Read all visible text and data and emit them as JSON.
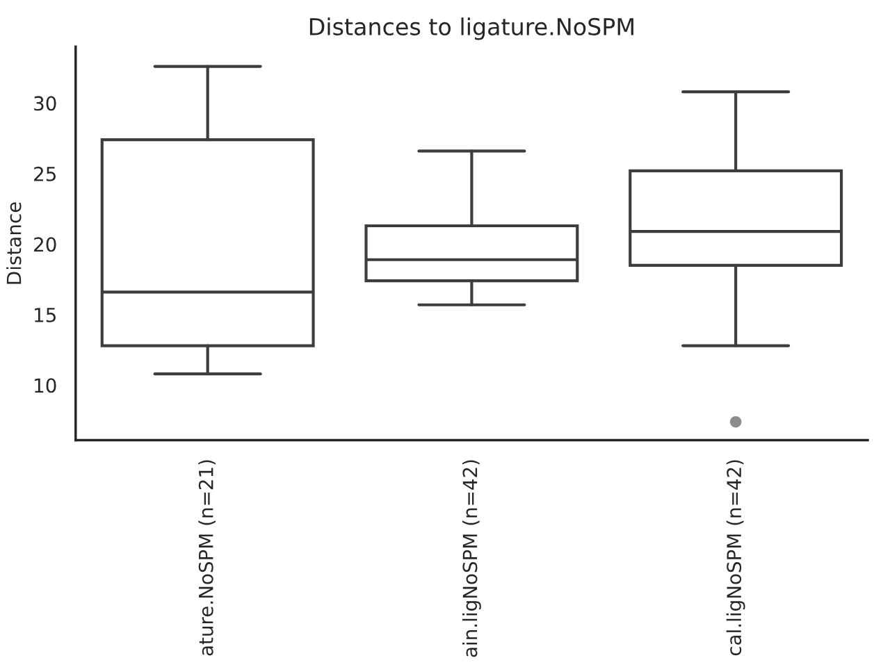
{
  "chart_data": {
    "type": "box",
    "title": "Distances to ligature.NoSPM",
    "ylabel": "Distance",
    "categories": [
      "ature.NoSPM (n=21)",
      "ain.ligNoSPM (n=42)",
      "cal.ligNoSPM (n=42)"
    ],
    "boxes": [
      {
        "low": 10.8,
        "q1": 12.8,
        "median": 16.6,
        "q3": 27.4,
        "high": 32.6
      },
      {
        "low": 15.7,
        "q1": 17.4,
        "median": 18.9,
        "q3": 21.3,
        "high": 26.6
      },
      {
        "low": 12.8,
        "q1": 18.5,
        "median": 20.9,
        "q3": 25.2,
        "high": 30.8,
        "outliers": [
          7.4
        ]
      }
    ],
    "color": "#ffffff",
    "ylim": [
      6.1,
      34.0
    ],
    "yticks": [
      10,
      15,
      20,
      25,
      30
    ],
    "grid": false,
    "legend": false
  }
}
